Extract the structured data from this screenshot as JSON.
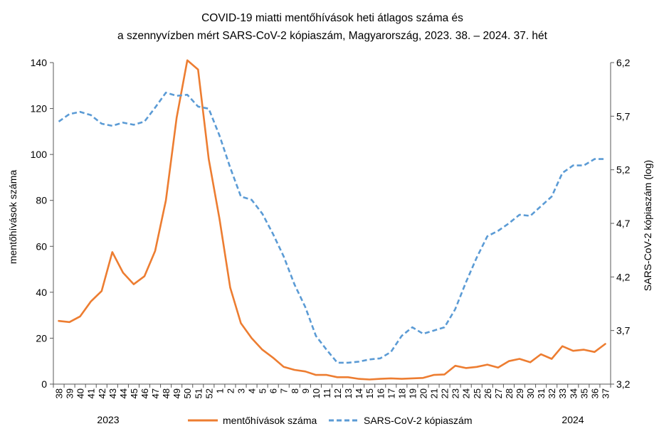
{
  "chart_data": {
    "type": "line",
    "title_line1": "COVID-19 miatti mentőhívások heti átlagos száma és",
    "title_line2": "a szennyvízben mért SARS-CoV-2 kópiaszám, Magyarország, 2023. 38. – 2024. 37. hét",
    "ylabel_left": "mentőhívások száma",
    "ylabel_right": "SARS-CoV-2 kópiaszám (log)",
    "ylim_left": [
      0,
      140
    ],
    "ylim_right": [
      3.2,
      6.2
    ],
    "yticks_left": [
      "0",
      "20",
      "40",
      "60",
      "80",
      "100",
      "120",
      "140"
    ],
    "yticks_right": [
      "3,2",
      "3,7",
      "4,2",
      "4,7",
      "5,2",
      "5,7",
      "6,2"
    ],
    "categories": [
      "38",
      "39",
      "40",
      "41",
      "42",
      "43",
      "44",
      "45",
      "46",
      "47",
      "48",
      "49",
      "50",
      "51",
      "52",
      "1",
      "2",
      "3",
      "4",
      "5",
      "6",
      "7",
      "8",
      "9",
      "10",
      "11",
      "12",
      "13",
      "14",
      "15",
      "16",
      "17",
      "18",
      "19",
      "20",
      "21",
      "22",
      "23",
      "24",
      "25",
      "26",
      "27",
      "28",
      "29",
      "30",
      "31",
      "32",
      "33",
      "34",
      "35",
      "36",
      "37"
    ],
    "year_labels": [
      "2023",
      "2024"
    ],
    "series": [
      {
        "name": "mentőhívások száma",
        "axis": "left",
        "color": "#ED7D31",
        "values": [
          27.5,
          27,
          29.5,
          36,
          40.5,
          57.5,
          48.5,
          43.5,
          47,
          58,
          80,
          116,
          141,
          137,
          98,
          72,
          42,
          26.5,
          20,
          15,
          11.5,
          7.5,
          6.2,
          5.5,
          4,
          4,
          3,
          3,
          2.3,
          2,
          2.3,
          2.5,
          2.3,
          2.5,
          2.7,
          4,
          4.2,
          8,
          7,
          7.5,
          8.5,
          7.2,
          10,
          11,
          9.5,
          13,
          11,
          16.5,
          14.5,
          15,
          14,
          17.5
        ]
      },
      {
        "name": "SARS-CoV-2 kópiaszám",
        "axis": "right",
        "color": "#5B9BD5",
        "values": [
          5.65,
          5.72,
          5.74,
          5.71,
          5.63,
          5.61,
          5.64,
          5.62,
          5.65,
          5.78,
          5.92,
          5.89,
          5.9,
          5.79,
          5.77,
          5.52,
          5.22,
          4.95,
          4.92,
          4.79,
          4.6,
          4.39,
          4.13,
          3.92,
          3.65,
          3.52,
          3.4,
          3.4,
          3.41,
          3.43,
          3.44,
          3.5,
          3.65,
          3.73,
          3.67,
          3.7,
          3.73,
          3.9,
          4.15,
          4.38,
          4.58,
          4.63,
          4.7,
          4.78,
          4.77,
          4.86,
          4.95,
          5.17,
          5.24,
          5.24,
          5.3,
          5.3
        ]
      }
    ]
  }
}
